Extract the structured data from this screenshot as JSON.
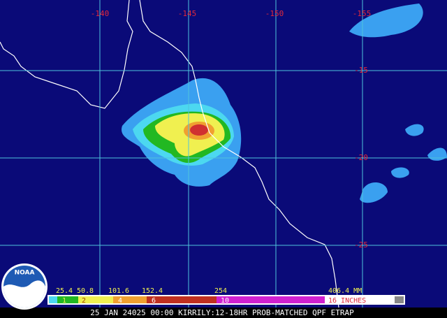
{
  "map": {
    "longitude_labels": [
      "-140",
      "-145",
      "-150",
      "-155"
    ],
    "latitude_labels": [
      "-15",
      "-20",
      "-25"
    ],
    "legend": {
      "mm_labels": [
        "25.4",
        "50.8",
        "101.6",
        "152.4",
        "254",
        "406.4 MM"
      ],
      "inch_labels": [
        "1",
        "2",
        "4",
        "6",
        "10",
        "16 INCHES"
      ]
    },
    "caption": "25 JAN 24025 00:00 KIRRILY:12-18HR PROB-MATCHED QPF ETRAP",
    "logo": "NOAA"
  }
}
